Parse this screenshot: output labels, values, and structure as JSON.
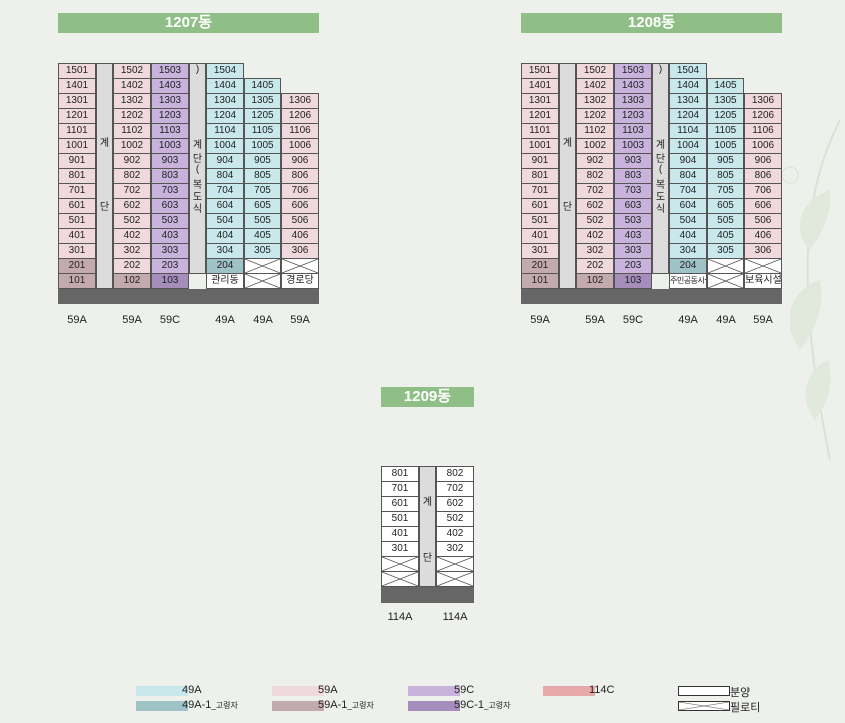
{
  "buildings": {
    "b1207": {
      "title": "1207동"
    },
    "b1208": {
      "title": "1208동"
    },
    "b1209": {
      "title": "1209동"
    }
  },
  "stair_labels": {
    "main": [
      "계",
      "단"
    ],
    "elevator": [
      "계",
      "단",
      "(",
      "복",
      "도",
      "식",
      ")"
    ]
  },
  "b1207_columns": [
    {
      "units": [
        "1501",
        "1401",
        "1301",
        "1201",
        "1101",
        "1001",
        "901",
        "801",
        "701",
        "601",
        "501",
        "401",
        "301",
        "201",
        "101"
      ],
      "types": [
        "59A",
        "59A",
        "59A",
        "59A",
        "59A",
        "59A",
        "59A",
        "59A",
        "59A",
        "59A",
        "59A",
        "59A",
        "59A",
        "59A-1",
        "59A-1"
      ],
      "type_label": "59A"
    },
    {
      "units": [
        "1502",
        "1402",
        "1302",
        "1202",
        "1102",
        "1002",
        "902",
        "802",
        "702",
        "602",
        "502",
        "402",
        "302",
        "202",
        "102"
      ],
      "types": [
        "59A",
        "59A",
        "59A",
        "59A",
        "59A",
        "59A",
        "59A",
        "59A",
        "59A",
        "59A",
        "59A",
        "59A",
        "59A",
        "59A",
        "59A-1"
      ],
      "type_label": "59A"
    },
    {
      "units": [
        "1503",
        "1403",
        "1303",
        "1203",
        "1103",
        "1003",
        "903",
        "803",
        "703",
        "603",
        "503",
        "403",
        "303",
        "203",
        "103"
      ],
      "types": [
        "59C",
        "59C",
        "59C",
        "59C",
        "59C",
        "59C",
        "59C",
        "59C",
        "59C",
        "59C",
        "59C",
        "59C",
        "59C",
        "59C",
        "59C-1"
      ],
      "type_label": "59C"
    },
    {
      "units": [
        "1504",
        "1404",
        "1304",
        "1204",
        "1104",
        "1004",
        "904",
        "804",
        "704",
        "604",
        "504",
        "404",
        "304",
        "204",
        "관리동"
      ],
      "types": [
        "49A",
        "49A",
        "49A",
        "49A",
        "49A",
        "49A",
        "49A",
        "49A",
        "49A",
        "49A",
        "49A",
        "49A",
        "49A",
        "49A-1",
        "white"
      ],
      "type_label": "49A"
    },
    {
      "units": [
        "1405",
        "1305",
        "1205",
        "1105",
        "1005",
        "905",
        "805",
        "705",
        "605",
        "505",
        "405",
        "305",
        "",
        ""
      ],
      "types": [
        "49A",
        "49A",
        "49A",
        "49A",
        "49A",
        "49A",
        "49A",
        "49A",
        "49A",
        "49A",
        "49A",
        "49A",
        "pil",
        "pil"
      ],
      "type_label": "49A"
    },
    {
      "units": [
        "1306",
        "1206",
        "1106",
        "1006",
        "906",
        "806",
        "706",
        "606",
        "506",
        "406",
        "306",
        "",
        "경로당"
      ],
      "types": [
        "59A",
        "59A",
        "59A",
        "59A",
        "59A",
        "59A",
        "59A",
        "59A",
        "59A",
        "59A",
        "59A",
        "pil",
        "white"
      ],
      "type_label": "59A"
    }
  ],
  "b1208_columns": [
    {
      "units": [
        "1501",
        "1401",
        "1301",
        "1201",
        "1101",
        "1001",
        "901",
        "801",
        "701",
        "601",
        "501",
        "401",
        "301",
        "201",
        "101"
      ],
      "types": [
        "59A",
        "59A",
        "59A",
        "59A",
        "59A",
        "59A",
        "59A",
        "59A",
        "59A",
        "59A",
        "59A",
        "59A",
        "59A",
        "59A-1",
        "59A-1"
      ],
      "type_label": "59A"
    },
    {
      "units": [
        "1502",
        "1402",
        "1302",
        "1202",
        "1102",
        "1002",
        "902",
        "802",
        "702",
        "602",
        "502",
        "402",
        "302",
        "202",
        "102"
      ],
      "types": [
        "59A",
        "59A",
        "59A",
        "59A",
        "59A",
        "59A",
        "59A",
        "59A",
        "59A",
        "59A",
        "59A",
        "59A",
        "59A",
        "59A",
        "59A-1"
      ],
      "type_label": "59A"
    },
    {
      "units": [
        "1503",
        "1403",
        "1303",
        "1203",
        "1103",
        "1003",
        "903",
        "803",
        "703",
        "603",
        "503",
        "403",
        "303",
        "203",
        "103"
      ],
      "types": [
        "59C",
        "59C",
        "59C",
        "59C",
        "59C",
        "59C",
        "59C",
        "59C",
        "59C",
        "59C",
        "59C",
        "59C",
        "59C",
        "59C",
        "59C-1"
      ],
      "type_label": "59C"
    },
    {
      "units": [
        "1504",
        "1404",
        "1304",
        "1204",
        "1104",
        "1004",
        "904",
        "804",
        "704",
        "604",
        "504",
        "404",
        "304",
        "204",
        "주민공동시설"
      ],
      "types": [
        "49A",
        "49A",
        "49A",
        "49A",
        "49A",
        "49A",
        "49A",
        "49A",
        "49A",
        "49A",
        "49A",
        "49A",
        "49A",
        "49A-1",
        "white"
      ],
      "type_label": "49A"
    },
    {
      "units": [
        "1405",
        "1305",
        "1205",
        "1105",
        "1005",
        "905",
        "805",
        "705",
        "605",
        "505",
        "405",
        "305",
        "",
        ""
      ],
      "types": [
        "49A",
        "49A",
        "49A",
        "49A",
        "49A",
        "49A",
        "49A",
        "49A",
        "49A",
        "49A",
        "49A",
        "49A",
        "pil",
        "pil"
      ],
      "type_label": "49A"
    },
    {
      "units": [
        "1306",
        "1206",
        "1106",
        "1006",
        "906",
        "806",
        "706",
        "606",
        "506",
        "406",
        "306",
        "",
        "보육시설"
      ],
      "types": [
        "59A",
        "59A",
        "59A",
        "59A",
        "59A",
        "59A",
        "59A",
        "59A",
        "59A",
        "59A",
        "59A",
        "pil",
        "white"
      ],
      "type_label": "59A"
    }
  ],
  "b1209_columns": [
    {
      "units": [
        "801",
        "701",
        "601",
        "501",
        "401",
        "301",
        "",
        ""
      ],
      "types": [
        "white",
        "white",
        "white",
        "white",
        "white",
        "white",
        "pil",
        "pil"
      ],
      "type_label": "114A"
    },
    {
      "units": [
        "802",
        "702",
        "602",
        "502",
        "402",
        "302",
        "",
        ""
      ],
      "types": [
        "white",
        "white",
        "white",
        "white",
        "white",
        "white",
        "pil",
        "pil"
      ],
      "type_label": "114A"
    }
  ],
  "legend": {
    "items": [
      {
        "label": "49A",
        "sub": "",
        "type": "49A"
      },
      {
        "label": "49A-1",
        "sub": "_고령자",
        "type": "49A-1"
      },
      {
        "label": "59A",
        "sub": "",
        "type": "59A"
      },
      {
        "label": "59A-1",
        "sub": "_고령자",
        "type": "59A-1"
      },
      {
        "label": "59C",
        "sub": "",
        "type": "59C"
      },
      {
        "label": "59C-1",
        "sub": "_고령자",
        "type": "59C-1"
      },
      {
        "label": "114C",
        "sub": "",
        "type": "114C"
      },
      {
        "label": "분양",
        "sub": "",
        "type": "white"
      },
      {
        "label": "필로티",
        "sub": "",
        "type": "pil"
      }
    ]
  },
  "colors": {
    "49A": "#c8e8ec",
    "49A-1": "#9fc2c7",
    "59A": "#efd9dc",
    "59A-1": "#c3aaae",
    "59C": "#c7b3dc",
    "59C-1": "#a58dbc",
    "114C": "#e7a9a9",
    "white": "#ffffff",
    "title_bg": "#8fbf86",
    "ground": "#666666"
  }
}
